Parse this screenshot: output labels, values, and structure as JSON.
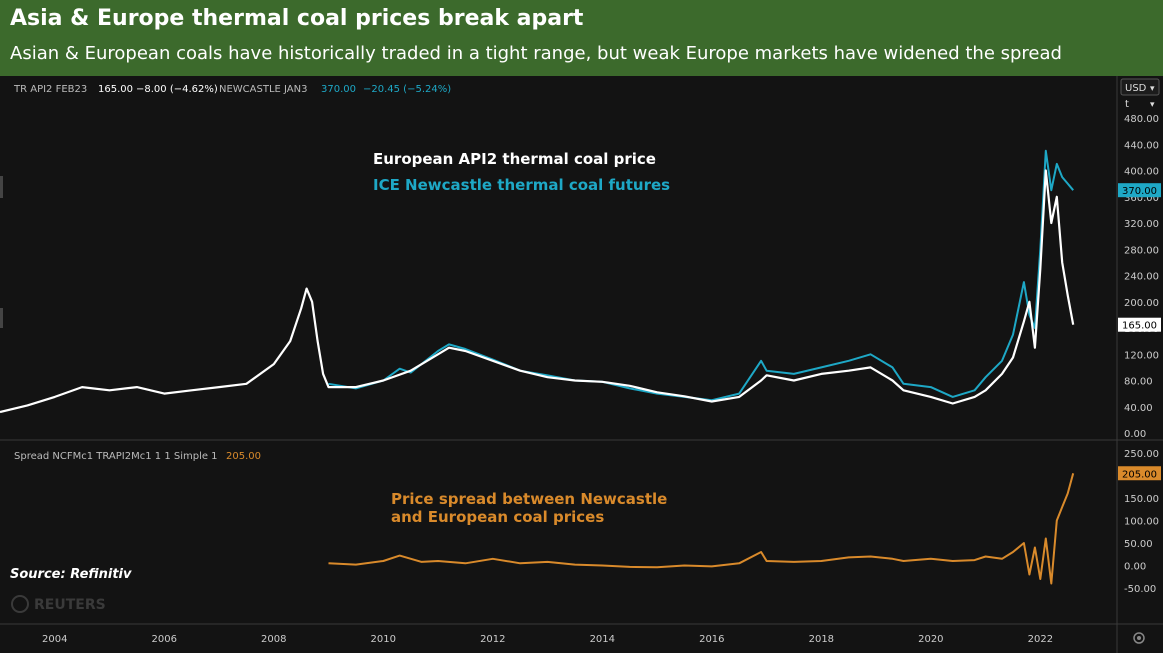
{
  "header": {
    "title": "Asia & Europe thermal coal prices break apart",
    "subtitle": "Asian & European coals have historically traded in a tight range, but weak Europe markets have widened the spread"
  },
  "toolbar": {
    "currency": "USD",
    "unit": "t"
  },
  "legend_top": {
    "s1_name": "TR API2 FEB23",
    "s1_price": "165.00",
    "s1_change": "−8.00 (−4.62%)",
    "s2_name": "NEWCASTLE JAN3",
    "s2_price": "370.00",
    "s2_change": "−20.45 (−5.24%)"
  },
  "legend_bottom": {
    "name": "Spread NCFMc1 TRAPI2Mc1 1 1 Simple 1",
    "value": "205.00"
  },
  "annotations": {
    "europe": "European API2 thermal coal price",
    "newcastle": "ICE Newcastle thermal coal futures",
    "spread1": "Price spread between Newcastle",
    "spread2": "and European coal prices",
    "source": "Source: Refinitiv",
    "watermark": "REUTERS"
  },
  "price_tags": {
    "newcastle": "370.00",
    "api2": "165.00",
    "spread": "205.00"
  },
  "colors": {
    "api2": "#ffffff",
    "newcastle": "#1ea8c6",
    "spread": "#d98a2b",
    "header_bg": "#3c6a2c"
  },
  "icons": {
    "settings": "gear-icon",
    "scroll": "chevron-down-icon"
  },
  "chart_data": [
    {
      "type": "line",
      "ylim": [
        0,
        480
      ],
      "yticks": [
        "0.00",
        "40.00",
        "80.00",
        "120.00",
        "160.00",
        "200.00",
        "240.00",
        "280.00",
        "320.00",
        "360.00",
        "400.00",
        "440.00",
        "480.00"
      ],
      "grid": false,
      "series": [
        {
          "name": "TR API2 FEB23",
          "points": [
            [
              2003.0,
              32
            ],
            [
              2003.5,
              42
            ],
            [
              2004.0,
              55
            ],
            [
              2004.5,
              70
            ],
            [
              2005.0,
              65
            ],
            [
              2005.5,
              70
            ],
            [
              2006.0,
              60
            ],
            [
              2006.5,
              65
            ],
            [
              2007.0,
              70
            ],
            [
              2007.5,
              75
            ],
            [
              2008.0,
              105
            ],
            [
              2008.3,
              140
            ],
            [
              2008.5,
              190
            ],
            [
              2008.6,
              220
            ],
            [
              2008.7,
              200
            ],
            [
              2008.8,
              140
            ],
            [
              2008.9,
              90
            ],
            [
              2009.0,
              70
            ],
            [
              2009.5,
              70
            ],
            [
              2010.0,
              80
            ],
            [
              2010.5,
              95
            ],
            [
              2011.0,
              120
            ],
            [
              2011.2,
              130
            ],
            [
              2011.5,
              125
            ],
            [
              2012.0,
              110
            ],
            [
              2012.5,
              95
            ],
            [
              2013.0,
              85
            ],
            [
              2013.5,
              80
            ],
            [
              2014.0,
              78
            ],
            [
              2014.5,
              72
            ],
            [
              2015.0,
              62
            ],
            [
              2015.5,
              56
            ],
            [
              2016.0,
              48
            ],
            [
              2016.5,
              55
            ],
            [
              2016.9,
              80
            ],
            [
              2017.0,
              88
            ],
            [
              2017.5,
              80
            ],
            [
              2018.0,
              90
            ],
            [
              2018.5,
              95
            ],
            [
              2018.9,
              100
            ],
            [
              2019.3,
              80
            ],
            [
              2019.5,
              65
            ],
            [
              2020.0,
              55
            ],
            [
              2020.4,
              45
            ],
            [
              2020.8,
              55
            ],
            [
              2021.0,
              65
            ],
            [
              2021.3,
              90
            ],
            [
              2021.5,
              115
            ],
            [
              2021.7,
              170
            ],
            [
              2021.8,
              200
            ],
            [
              2021.9,
              130
            ],
            [
              2022.0,
              250
            ],
            [
              2022.1,
              400
            ],
            [
              2022.2,
              320
            ],
            [
              2022.3,
              360
            ],
            [
              2022.4,
              260
            ],
            [
              2022.5,
              210
            ],
            [
              2022.6,
              165
            ]
          ]
        },
        {
          "name": "NEWCASTLE JAN3",
          "points": [
            [
              2009.0,
              75
            ],
            [
              2009.5,
              68
            ],
            [
              2010.0,
              80
            ],
            [
              2010.3,
              98
            ],
            [
              2010.5,
              92
            ],
            [
              2011.0,
              125
            ],
            [
              2011.2,
              135
            ],
            [
              2011.5,
              128
            ],
            [
              2012.0,
              112
            ],
            [
              2012.5,
              95
            ],
            [
              2013.0,
              88
            ],
            [
              2013.5,
              80
            ],
            [
              2014.0,
              78
            ],
            [
              2014.5,
              68
            ],
            [
              2015.0,
              60
            ],
            [
              2015.5,
              55
            ],
            [
              2016.0,
              50
            ],
            [
              2016.5,
              60
            ],
            [
              2016.9,
              110
            ],
            [
              2017.0,
              95
            ],
            [
              2017.5,
              90
            ],
            [
              2018.0,
              100
            ],
            [
              2018.5,
              110
            ],
            [
              2018.9,
              120
            ],
            [
              2019.3,
              100
            ],
            [
              2019.5,
              75
            ],
            [
              2020.0,
              70
            ],
            [
              2020.4,
              55
            ],
            [
              2020.8,
              65
            ],
            [
              2021.0,
              85
            ],
            [
              2021.3,
              110
            ],
            [
              2021.5,
              150
            ],
            [
              2021.7,
              230
            ],
            [
              2021.8,
              180
            ],
            [
              2021.9,
              160
            ],
            [
              2022.0,
              280
            ],
            [
              2022.1,
              430
            ],
            [
              2022.2,
              370
            ],
            [
              2022.3,
              410
            ],
            [
              2022.4,
              390
            ],
            [
              2022.5,
              380
            ],
            [
              2022.6,
              370
            ]
          ]
        }
      ]
    },
    {
      "type": "line",
      "ylim": [
        -50,
        250
      ],
      "yticks": [
        "-50.00",
        "0.00",
        "50.00",
        "100.00",
        "150.00",
        "200.00",
        "250.00"
      ],
      "grid": false,
      "series": [
        {
          "name": "Spread NCFMc1 TRAPI2Mc1 1 1 Simple 1",
          "points": [
            [
              2009.0,
              5
            ],
            [
              2009.5,
              2
            ],
            [
              2010.0,
              10
            ],
            [
              2010.3,
              22
            ],
            [
              2010.7,
              8
            ],
            [
              2011.0,
              10
            ],
            [
              2011.5,
              5
            ],
            [
              2012.0,
              15
            ],
            [
              2012.5,
              5
            ],
            [
              2013.0,
              8
            ],
            [
              2013.5,
              2
            ],
            [
              2014.0,
              0
            ],
            [
              2014.5,
              -3
            ],
            [
              2015.0,
              -4
            ],
            [
              2015.5,
              0
            ],
            [
              2016.0,
              -2
            ],
            [
              2016.5,
              5
            ],
            [
              2016.9,
              30
            ],
            [
              2017.0,
              10
            ],
            [
              2017.5,
              8
            ],
            [
              2018.0,
              10
            ],
            [
              2018.5,
              18
            ],
            [
              2018.9,
              20
            ],
            [
              2019.3,
              15
            ],
            [
              2019.5,
              10
            ],
            [
              2020.0,
              15
            ],
            [
              2020.4,
              10
            ],
            [
              2020.8,
              12
            ],
            [
              2021.0,
              20
            ],
            [
              2021.3,
              15
            ],
            [
              2021.5,
              30
            ],
            [
              2021.7,
              50
            ],
            [
              2021.8,
              -20
            ],
            [
              2021.9,
              40
            ],
            [
              2022.0,
              -30
            ],
            [
              2022.1,
              60
            ],
            [
              2022.2,
              -40
            ],
            [
              2022.3,
              100
            ],
            [
              2022.4,
              130
            ],
            [
              2022.5,
              160
            ],
            [
              2022.6,
              205
            ]
          ]
        }
      ]
    }
  ],
  "x_axis": {
    "ticks": [
      "2004",
      "2006",
      "2008",
      "2010",
      "2012",
      "2014",
      "2016",
      "2018",
      "2020",
      "2022"
    ],
    "tick_values": [
      2004,
      2006,
      2008,
      2010,
      2012,
      2014,
      2016,
      2018,
      2020,
      2022
    ],
    "xlim": [
      2003.0,
      2023.4
    ]
  }
}
